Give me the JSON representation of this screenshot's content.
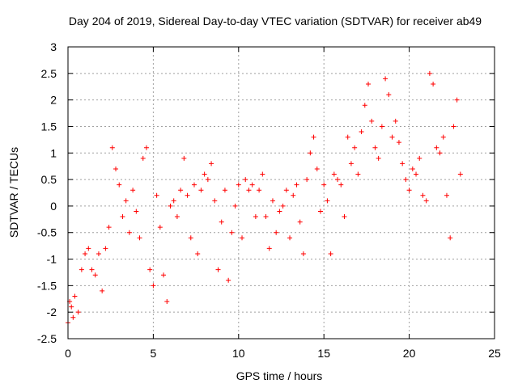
{
  "chart_data": {
    "type": "scatter",
    "title": "Day 204 of 2019, Sidereal Day-to-day VTEC variation (SDTVAR) for receiver ab49",
    "xlabel": "GPS time / hours",
    "ylabel": "SDTVAR / TECUs",
    "xlim": [
      0,
      25
    ],
    "ylim": [
      -2.5,
      3
    ],
    "xticks": [
      0,
      5,
      10,
      15,
      20,
      25
    ],
    "xtick_labels": [
      "0",
      "5",
      "10",
      "15",
      "20",
      "25"
    ],
    "yticks": [
      -2.5,
      -2,
      -1.5,
      -1,
      -0.5,
      0,
      0.5,
      1,
      1.5,
      2,
      2.5,
      3
    ],
    "ytick_labels": [
      "-2.5",
      "-2",
      "-1.5",
      "-1",
      "-0.5",
      "0",
      "0.5",
      "1",
      "1.5",
      "2",
      "2.5",
      "3"
    ],
    "grid": true,
    "marker": "+",
    "color": "#ff0000",
    "series": [
      {
        "name": "SDTVAR",
        "x": [
          0.0,
          0.1,
          0.2,
          0.3,
          0.4,
          0.6,
          0.8,
          1.0,
          1.2,
          1.4,
          1.6,
          1.8,
          2.0,
          2.2,
          2.4,
          2.6,
          2.8,
          3.0,
          3.2,
          3.4,
          3.6,
          3.8,
          4.0,
          4.2,
          4.4,
          4.6,
          4.8,
          5.0,
          5.2,
          5.4,
          5.6,
          5.8,
          6.0,
          6.2,
          6.4,
          6.6,
          6.8,
          7.0,
          7.2,
          7.4,
          7.6,
          7.8,
          8.0,
          8.2,
          8.4,
          8.6,
          8.8,
          9.0,
          9.2,
          9.4,
          9.6,
          9.8,
          10.0,
          10.2,
          10.4,
          10.6,
          10.8,
          11.0,
          11.2,
          11.4,
          11.6,
          11.8,
          12.0,
          12.2,
          12.4,
          12.6,
          12.8,
          13.0,
          13.2,
          13.4,
          13.6,
          13.8,
          14.0,
          14.2,
          14.4,
          14.6,
          14.8,
          15.0,
          15.2,
          15.4,
          15.6,
          15.8,
          16.0,
          16.2,
          16.4,
          16.6,
          16.8,
          17.0,
          17.2,
          17.4,
          17.6,
          17.8,
          18.0,
          18.2,
          18.4,
          18.6,
          18.8,
          19.0,
          19.2,
          19.4,
          19.6,
          19.8,
          20.0,
          20.2,
          20.4,
          20.6,
          20.8,
          21.0,
          21.2,
          21.4,
          21.6,
          21.8,
          22.0,
          22.2,
          22.4,
          22.6,
          22.8,
          23.0
        ],
        "y": [
          -2.2,
          -1.8,
          -1.9,
          -2.1,
          -1.7,
          -2.0,
          -1.2,
          -0.9,
          -0.8,
          -1.2,
          -1.3,
          -0.9,
          -1.6,
          -0.8,
          -0.4,
          1.1,
          0.7,
          0.4,
          -0.2,
          0.1,
          -0.5,
          0.3,
          -0.1,
          -0.6,
          0.9,
          1.1,
          -1.2,
          -1.5,
          0.2,
          -0.4,
          -1.3,
          -1.8,
          0.0,
          0.1,
          -0.2,
          0.3,
          0.9,
          0.2,
          -0.6,
          0.4,
          -0.9,
          0.3,
          0.6,
          0.5,
          0.8,
          0.1,
          -1.2,
          -0.3,
          0.3,
          -1.4,
          -0.5,
          0.0,
          0.4,
          -0.6,
          0.5,
          0.3,
          0.4,
          -0.2,
          0.3,
          0.6,
          -0.2,
          -0.8,
          0.1,
          -0.5,
          -0.1,
          0.0,
          0.3,
          -0.6,
          0.2,
          0.4,
          -0.3,
          -0.9,
          0.5,
          1.0,
          1.3,
          0.7,
          -0.1,
          0.4,
          0.1,
          -0.9,
          0.6,
          0.5,
          0.4,
          -0.2,
          1.3,
          0.8,
          1.1,
          0.6,
          1.4,
          1.9,
          2.3,
          1.6,
          1.1,
          0.9,
          1.5,
          2.4,
          2.1,
          1.3,
          1.6,
          1.2,
          0.8,
          0.5,
          0.3,
          0.7,
          0.6,
          0.9,
          0.2,
          0.1,
          2.5,
          2.3,
          1.1,
          1.0,
          1.3,
          0.2,
          -0.6,
          1.5,
          2.0,
          0.6
        ]
      }
    ]
  }
}
